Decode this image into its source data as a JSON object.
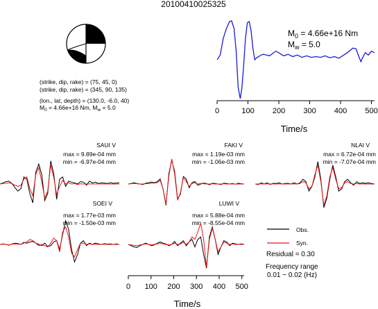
{
  "event_id": "20100410025325",
  "mechanism": {
    "nodal_1": "(strike, dip, rake) = (75, 45, 0)",
    "nodal_2": "(strike, dip, rake) = (345, 90, 135)",
    "location": "(lon., lat, depth) = (130.0, -6.0, 40)",
    "moment": "M",
    "moment_sub": "0",
    "moment_rest": " = 4.66e+16 Nm, M",
    "mag_sub": "w",
    "mag_rest": " = 5.0"
  },
  "stf": {
    "m0_label": "M",
    "m0_sub": "0",
    "m0_value": " = 4.66e+16 Nm",
    "mw_label": "M",
    "mw_sub": "w",
    "mw_value": " = 5.0",
    "xlabel": "Time/s"
  },
  "stations": [
    {
      "name": "SAUI V",
      "max": "max = 9.89e-04 mm",
      "min": "min = -6.97e-04 mm"
    },
    {
      "name": "FAKI V",
      "max": "max = 1.19e-03 mm",
      "min": "min = -1.06e-03 mm"
    },
    {
      "name": "NLAI V",
      "max": "max = 6.72e-04 mm",
      "min": "min = -7.07e-04 mm"
    },
    {
      "name": "SOEI V",
      "max": "max = 1.77e-03 mm",
      "min": "min = -1.50e-03 mm"
    },
    {
      "name": "LUWI V",
      "max": "max = 5.88e-04 mm",
      "min": "min = -8.55e-04 mm"
    }
  ],
  "legend": {
    "obs": "Obs.",
    "syn": "Syn.",
    "residual": "Residual = 0.30",
    "freq_title": "Frequency range",
    "freq_value": "0.01 − 0.02 (Hz)"
  },
  "waveform_xlabel": "Time/s",
  "colors": {
    "observed": "#000000",
    "synthetic": "#ee1111",
    "stf": "#1a1adb"
  },
  "chart_data": [
    {
      "type": "line",
      "name": "source-time-function",
      "xlabel": "Time/s",
      "ylabel": "",
      "xlim": [
        0,
        510
      ],
      "xticks": [
        0,
        100,
        200,
        300,
        400,
        500
      ],
      "series": [
        {
          "name": "",
          "color": "#1a1adb",
          "x": [
            0,
            10,
            20,
            30,
            40,
            47,
            55,
            62,
            68,
            75,
            80,
            86,
            92,
            98,
            104,
            110,
            116,
            122,
            128,
            135,
            142,
            150,
            160,
            170,
            180,
            190,
            200,
            215,
            230,
            245,
            260,
            275,
            290,
            305,
            320,
            335,
            350,
            365,
            380,
            395,
            410,
            425,
            440,
            450,
            458,
            466,
            472,
            480,
            490,
            500,
            510
          ],
          "y": [
            0.0,
            0.12,
            0.55,
            0.8,
            0.98,
            1.0,
            0.8,
            0.2,
            -0.7,
            -1.0,
            -0.75,
            -0.15,
            0.55,
            0.95,
            0.98,
            0.75,
            0.3,
            0.0,
            0.05,
            0.08,
            0.12,
            0.14,
            0.12,
            0.1,
            0.16,
            0.22,
            0.18,
            0.1,
            0.14,
            0.08,
            0.12,
            0.06,
            0.1,
            0.06,
            0.08,
            0.06,
            0.1,
            0.05,
            0.08,
            0.04,
            0.12,
            0.2,
            0.3,
            0.28,
            0.1,
            -0.05,
            0.06,
            0.18,
            0.12,
            0.22,
            0.18
          ]
        }
      ]
    },
    {
      "type": "line",
      "name": "waveforms",
      "xlabel": "Time/s",
      "xlim": [
        0,
        510
      ],
      "xticks": [
        0,
        100,
        200,
        300,
        400,
        500
      ],
      "panels": [
        {
          "station": "SAUI V",
          "observed": [
            0.0,
            0.05,
            0.1,
            0.12,
            0.02,
            -0.15,
            -0.3,
            -0.2,
            0.3,
            0.2,
            -0.4,
            -0.8,
            0.5,
            0.85,
            0.4,
            -0.7,
            -0.4,
            0.98,
            0.45,
            -0.65,
            0.2,
            0.3,
            -0.1,
            0.12,
            0.08,
            0.05,
            0.0,
            0.1,
            0.08,
            -0.05,
            0.12,
            0.05,
            0.08,
            0.02,
            0.05,
            0.04,
            0.02,
            0.06,
            0.03,
            0.04,
            0.05
          ],
          "synthetic": [
            0.0,
            0.02,
            0.03,
            0.05,
            0.02,
            -0.05,
            -0.1,
            -0.05,
            0.2,
            0.3,
            -0.2,
            -0.5,
            0.4,
            0.7,
            0.1,
            -0.6,
            -0.3,
            0.8,
            0.3,
            -0.45,
            -0.1,
            0.15,
            0.0,
            0.05,
            0.0,
            0.02,
            -0.02,
            0.01,
            0.0,
            0.01,
            0.0,
            0.01,
            0.0,
            0.01,
            0.0,
            0.0,
            0.01,
            0.0,
            0.0,
            0.0,
            0.0
          ]
        },
        {
          "station": "FAKI V",
          "observed": [
            0.0,
            0.02,
            0.05,
            0.02,
            0.0,
            -0.02,
            0.03,
            0.05,
            0.08,
            0.05,
            0.1,
            0.2,
            -0.2,
            -0.85,
            0.4,
            0.95,
            0.5,
            -0.6,
            -0.4,
            0.3,
            0.2,
            -0.15,
            0.05,
            0.1,
            -0.05,
            0.0,
            0.04,
            0.02,
            -0.03,
            0.03,
            0.02,
            0.0,
            -0.02,
            0.03,
            0.02,
            0.0,
            0.02,
            -0.01,
            0.03,
            0.01,
            0.0
          ],
          "synthetic": [
            0.0,
            0.01,
            0.02,
            0.01,
            0.0,
            0.0,
            0.01,
            0.02,
            0.03,
            0.04,
            0.05,
            0.15,
            -0.2,
            -0.8,
            0.3,
            1.0,
            0.4,
            -0.65,
            -0.35,
            0.25,
            0.1,
            -0.1,
            0.02,
            0.05,
            0.0,
            0.02,
            0.01,
            0.0,
            0.0,
            0.01,
            0.0,
            0.0,
            0.0,
            0.01,
            0.0,
            0.0,
            0.0,
            0.0,
            0.0,
            0.0,
            0.0
          ]
        },
        {
          "station": "NLAI V",
          "observed": [
            0.0,
            -0.02,
            0.05,
            0.0,
            0.05,
            -0.02,
            0.03,
            0.02,
            0.05,
            0.0,
            0.02,
            0.03,
            0.0,
            0.05,
            0.0,
            0.05,
            0.2,
            0.1,
            -0.3,
            -0.1,
            0.3,
            0.95,
            0.2,
            -1.0,
            -0.6,
            0.2,
            0.8,
            0.3,
            -0.3,
            -0.2,
            0.1,
            0.2,
            0.05,
            -0.05,
            0.1,
            0.02,
            0.05,
            0.03,
            0.05,
            0.02,
            0.0
          ],
          "synthetic": [
            0.0,
            0.0,
            0.01,
            0.0,
            0.01,
            0.0,
            0.01,
            0.0,
            0.01,
            0.0,
            0.0,
            0.01,
            0.0,
            0.01,
            0.0,
            0.02,
            0.1,
            0.05,
            -0.2,
            -0.1,
            0.4,
            0.8,
            0.1,
            -0.9,
            -0.5,
            0.3,
            0.7,
            0.2,
            -0.2,
            -0.15,
            0.05,
            0.1,
            0.02,
            0.0,
            0.02,
            0.0,
            0.01,
            0.0,
            0.0,
            0.0,
            0.0
          ]
        },
        {
          "station": "SOEI V",
          "observed": [
            0.0,
            0.02,
            0.0,
            -0.03,
            0.02,
            0.05,
            0.03,
            0.0,
            0.08,
            0.05,
            0.1,
            0.12,
            0.05,
            0.0,
            -0.05,
            0.05,
            -0.08,
            -0.05,
            0.1,
            0.15,
            -0.2,
            0.4,
            0.95,
            0.6,
            -0.2,
            -0.7,
            -0.4,
            0.05,
            0.15,
            -0.05,
            0.05,
            0.0,
            0.05,
            0.02,
            0.0,
            0.03,
            0.01,
            0.02,
            0.0,
            0.02,
            0.0
          ],
          "synthetic": [
            0.0,
            0.01,
            0.0,
            -0.02,
            0.01,
            0.02,
            0.01,
            0.0,
            0.05,
            0.1,
            0.2,
            0.15,
            0.05,
            -0.05,
            0.0,
            -0.05,
            -0.1,
            0.05,
            0.25,
            0.15,
            -0.3,
            0.5,
            0.7,
            0.3,
            -0.35,
            -0.5,
            -0.2,
            0.05,
            0.05,
            0.0,
            0.02,
            0.0,
            0.01,
            0.0,
            0.0,
            0.01,
            0.0,
            0.0,
            0.0,
            0.0,
            0.0
          ]
        },
        {
          "station": "LUWI V",
          "observed": [
            0.0,
            -0.05,
            -0.1,
            -0.12,
            -0.05,
            0.0,
            0.05,
            0.0,
            -0.05,
            -0.02,
            0.05,
            0.1,
            0.05,
            0.02,
            -0.05,
            0.0,
            0.12,
            -0.05,
            0.05,
            0.15,
            -0.05,
            0.1,
            0.2,
            -0.1,
            0.2,
            0.3,
            -0.4,
            -0.95,
            0.3,
            0.7,
            0.2,
            -0.4,
            -0.1,
            0.15,
            0.1,
            -0.05,
            0.05,
            0.02,
            0.0,
            0.02,
            0.0
          ],
          "synthetic": [
            0.0,
            -0.02,
            -0.04,
            -0.05,
            -0.02,
            0.0,
            0.02,
            0.0,
            -0.02,
            0.0,
            0.02,
            0.05,
            0.02,
            0.0,
            -0.02,
            0.0,
            0.05,
            0.0,
            0.02,
            0.08,
            0.0,
            0.1,
            0.3,
            0.2,
            0.5,
            0.85,
            0.2,
            -0.9,
            0.2,
            0.65,
            0.2,
            -0.3,
            -0.1,
            0.1,
            0.05,
            0.0,
            0.02,
            0.0,
            0.0,
            0.0,
            0.0
          ]
        }
      ]
    }
  ]
}
